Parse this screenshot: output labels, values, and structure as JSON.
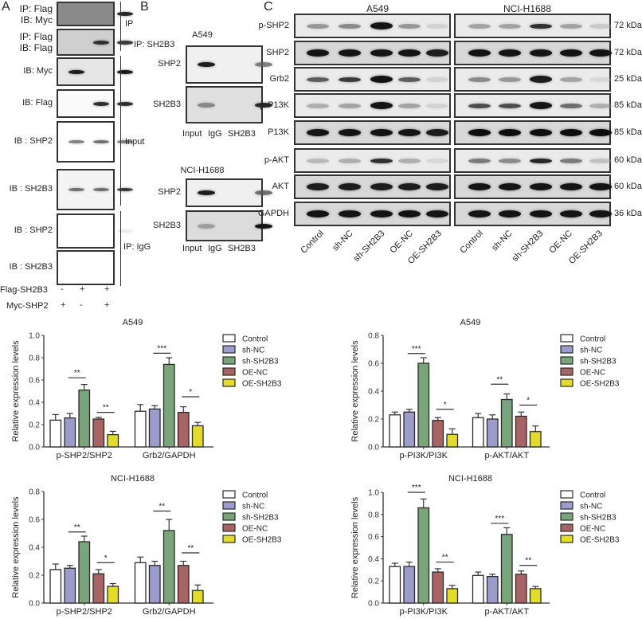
{
  "panels": {
    "a": {
      "letter": "A",
      "rows": [
        {
          "label_lines": [
            "IP: Flag",
            "IB: Myc"
          ],
          "lanes": [
            0,
            0,
            0.85
          ],
          "bg": "#8a8a8a"
        },
        {
          "label_lines": [
            "IP: Flag",
            "IB: Flag"
          ],
          "lanes": [
            0,
            0.8,
            0.75
          ],
          "bg": "#cfcfcf"
        },
        {
          "label_lines": [
            "IB: Myc"
          ],
          "lanes": [
            0.9,
            0,
            0.9
          ],
          "bg": "#e6e6e6"
        },
        {
          "label_lines": [
            "IB: Flag"
          ],
          "lanes": [
            0,
            0.8,
            0.8
          ],
          "bg": "#fafafa"
        },
        {
          "label_lines": [
            "IB : SHP2"
          ],
          "lanes": [
            0.55,
            0.6,
            0.55
          ],
          "bg": "#ffffff"
        },
        {
          "label_lines": [
            "IB : SH2B3"
          ],
          "lanes": [
            0.6,
            0.6,
            0.75
          ],
          "bg": "#f4f4f4"
        },
        {
          "label_lines": [
            "IB : SHP2"
          ],
          "lanes": [
            0,
            0,
            0.05
          ],
          "bg": "#ffffff"
        },
        {
          "label_lines": [
            "IB : SH2B3"
          ],
          "lanes": [
            0,
            0,
            0
          ],
          "bg": "#ffffff"
        }
      ],
      "group_labels": {
        "ip": "IP",
        "input": "Input",
        "ip_igg": "IP: IgG"
      },
      "conditions": [
        {
          "name": "Flag-SH2B3",
          "values": [
            "-",
            "+",
            "+"
          ]
        },
        {
          "name": "Myc-SHP2",
          "values": [
            "+",
            "-",
            "+"
          ]
        }
      ]
    },
    "b": {
      "letter": "B",
      "ip_label": "IP: SH2B3",
      "blocks": [
        {
          "cell_line": "A549",
          "rows": [
            {
              "label": "SHP2",
              "lanes": [
                0.9,
                0,
                0.55
              ],
              "bg": "#f0f0f0"
            },
            {
              "label": "SH2B3",
              "lanes": [
                0.5,
                0,
                0.85
              ],
              "bg": "#e0e0e0"
            }
          ]
        },
        {
          "cell_line": "NCI-H1688",
          "rows": [
            {
              "label": "SHP2",
              "lanes": [
                0.9,
                0,
                0.6
              ],
              "bg": "#f0f0f0"
            },
            {
              "label": "SH2B3",
              "lanes": [
                0.4,
                0,
                0.95
              ],
              "bg": "#dcdcdc"
            }
          ]
        }
      ],
      "lane_labels": [
        "Input",
        "IgG",
        "SH2B3"
      ]
    },
    "c": {
      "letter": "C",
      "cell_lines": [
        "A549",
        "NCI-H1688"
      ],
      "rows": [
        {
          "label": "p-SHP2",
          "kda": "72 kDa",
          "a549": [
            0.45,
            0.5,
            0.95,
            0.45,
            0.15
          ],
          "h1688": [
            0.4,
            0.4,
            0.8,
            0.4,
            0.2
          ]
        },
        {
          "label": "SHP2",
          "kda": "72 kDa",
          "a549": [
            0.95,
            0.95,
            0.95,
            0.95,
            0.9
          ],
          "h1688": [
            0.95,
            0.95,
            0.95,
            0.95,
            0.95
          ]
        },
        {
          "label": "Grb2",
          "kda": "25 kDa",
          "a549": [
            0.65,
            0.75,
            0.95,
            0.65,
            0.15
          ],
          "h1688": [
            0.5,
            0.45,
            0.9,
            0.4,
            0.1
          ]
        },
        {
          "label": "p-P13K",
          "kda": "85 kDa",
          "a549": [
            0.35,
            0.4,
            0.95,
            0.4,
            0.15
          ],
          "h1688": [
            0.7,
            0.7,
            0.95,
            0.6,
            0.35
          ]
        },
        {
          "label": "P13K",
          "kda": "85 kDa",
          "a549": [
            0.95,
            0.95,
            0.95,
            0.95,
            0.9
          ],
          "h1688": [
            0.98,
            0.98,
            0.98,
            0.98,
            0.98
          ]
        },
        {
          "label": "p-AKT",
          "kda": "60 kDa",
          "a549": [
            0.3,
            0.35,
            0.8,
            0.35,
            0.1
          ],
          "h1688": [
            0.55,
            0.5,
            0.85,
            0.55,
            0.25
          ]
        },
        {
          "label": "AKT",
          "kda": "60 kDa",
          "a549": [
            0.9,
            0.9,
            0.9,
            0.9,
            0.9
          ],
          "h1688": [
            0.95,
            0.95,
            0.95,
            0.95,
            0.95
          ]
        },
        {
          "label": "GAPDH",
          "kda": "36 kDa",
          "a549": [
            0.95,
            0.95,
            0.95,
            0.95,
            0.95
          ],
          "h1688": [
            0.95,
            0.95,
            0.95,
            0.95,
            0.95
          ]
        }
      ],
      "lane_labels": [
        "Control",
        "sh-NC",
        "sh-SH2B3",
        "OE-NC",
        "OE-SH2B3"
      ]
    }
  },
  "legend": {
    "entries": [
      {
        "name": "Control",
        "color": "#ffffff"
      },
      {
        "name": "sh-NC",
        "color": "#9c9ccc"
      },
      {
        "name": "sh-SH2B3",
        "color": "#7aa57a"
      },
      {
        "name": "OE-NC",
        "color": "#a86464"
      },
      {
        "name": "OE-SH2B3",
        "color": "#e3dc2a"
      }
    ]
  },
  "chart_data": [
    {
      "type": "bar",
      "title": "A549",
      "ylabel": "Relative expression levels",
      "ylim": [
        0,
        1.0
      ],
      "yticks": [
        "0.0",
        "0.2",
        "0.4",
        "0.6",
        "0.8",
        "1.0"
      ],
      "categories": [
        "p-SHP2/SHP2",
        "Grb2/GAPDH"
      ],
      "series": [
        {
          "name": "Control",
          "values": [
            0.24,
            0.32
          ],
          "errors": [
            0.05,
            0.06
          ]
        },
        {
          "name": "sh-NC",
          "values": [
            0.26,
            0.34
          ],
          "errors": [
            0.04,
            0.03
          ]
        },
        {
          "name": "sh-SH2B3",
          "values": [
            0.51,
            0.74
          ],
          "errors": [
            0.05,
            0.06
          ]
        },
        {
          "name": "OE-NC",
          "values": [
            0.25,
            0.31
          ],
          "errors": [
            0.015,
            0.05
          ]
        },
        {
          "name": "OE-SH2B3",
          "values": [
            0.11,
            0.19
          ],
          "errors": [
            0.03,
            0.03
          ]
        }
      ],
      "significance": [
        {
          "category": 0,
          "from": "sh-NC",
          "to": "sh-SH2B3",
          "label": "**",
          "level": 0.62
        },
        {
          "category": 0,
          "from": "OE-NC",
          "to": "OE-SH2B3",
          "label": "**",
          "level": 0.31
        },
        {
          "category": 1,
          "from": "sh-NC",
          "to": "sh-SH2B3",
          "label": "***",
          "level": 0.84
        },
        {
          "category": 1,
          "from": "OE-NC",
          "to": "OE-SH2B3",
          "label": "*",
          "level": 0.45
        }
      ],
      "legend": "right"
    },
    {
      "type": "bar",
      "title": "A549",
      "ylabel": "Relative expression levels",
      "ylim": [
        0,
        0.8
      ],
      "yticks": [
        "0.0",
        "0.2",
        "0.4",
        "0.6",
        "0.8"
      ],
      "categories": [
        "p-PI3K/PI3K",
        "p-AKT/AKT"
      ],
      "series": [
        {
          "name": "Control",
          "values": [
            0.23,
            0.21
          ],
          "errors": [
            0.02,
            0.03
          ]
        },
        {
          "name": "sh-NC",
          "values": [
            0.25,
            0.2
          ],
          "errors": [
            0.02,
            0.03
          ]
        },
        {
          "name": "sh-SH2B3",
          "values": [
            0.6,
            0.34
          ],
          "errors": [
            0.04,
            0.04
          ]
        },
        {
          "name": "OE-NC",
          "values": [
            0.19,
            0.22
          ],
          "errors": [
            0.02,
            0.03
          ]
        },
        {
          "name": "OE-SH2B3",
          "values": [
            0.09,
            0.11
          ],
          "errors": [
            0.04,
            0.04
          ]
        }
      ],
      "significance": [
        {
          "category": 0,
          "from": "sh-NC",
          "to": "sh-SH2B3",
          "label": "***",
          "level": 0.67
        },
        {
          "category": 0,
          "from": "OE-NC",
          "to": "OE-SH2B3",
          "label": "*",
          "level": 0.27
        },
        {
          "category": 1,
          "from": "sh-NC",
          "to": "sh-SH2B3",
          "label": "**",
          "level": 0.45
        },
        {
          "category": 1,
          "from": "OE-NC",
          "to": "OE-SH2B3",
          "label": "*",
          "level": 0.3
        }
      ],
      "legend": "right"
    },
    {
      "type": "bar",
      "title": "NCI-H1688",
      "ylabel": "Relative expression levels",
      "ylim": [
        0,
        0.8
      ],
      "yticks": [
        "0.0",
        "0.2",
        "0.4",
        "0.6",
        "0.8"
      ],
      "categories": [
        "p-SHP2/SHP2",
        "Grb2/GAPDH"
      ],
      "series": [
        {
          "name": "Control",
          "values": [
            0.24,
            0.29
          ],
          "errors": [
            0.04,
            0.04
          ]
        },
        {
          "name": "sh-NC",
          "values": [
            0.25,
            0.27
          ],
          "errors": [
            0.02,
            0.03
          ]
        },
        {
          "name": "sh-SH2B3",
          "values": [
            0.44,
            0.52
          ],
          "errors": [
            0.04,
            0.08
          ]
        },
        {
          "name": "OE-NC",
          "values": [
            0.21,
            0.27
          ],
          "errors": [
            0.03,
            0.03
          ]
        },
        {
          "name": "OE-SH2B3",
          "values": [
            0.12,
            0.09
          ],
          "errors": [
            0.02,
            0.04
          ]
        }
      ],
      "significance": [
        {
          "category": 0,
          "from": "sh-NC",
          "to": "sh-SH2B3",
          "label": "**",
          "level": 0.51
        },
        {
          "category": 0,
          "from": "OE-NC",
          "to": "OE-SH2B3",
          "label": "*",
          "level": 0.29
        },
        {
          "category": 1,
          "from": "sh-NC",
          "to": "sh-SH2B3",
          "label": "**",
          "level": 0.66
        },
        {
          "category": 1,
          "from": "OE-NC",
          "to": "OE-SH2B3",
          "label": "**",
          "level": 0.36
        }
      ],
      "legend": "right"
    },
    {
      "type": "bar",
      "title": "NCI-H1688",
      "ylabel": "Relative expression levels",
      "ylim": [
        0,
        1.0
      ],
      "yticks": [
        "0.0",
        "0.2",
        "0.4",
        "0.6",
        "0.8",
        "1.0"
      ],
      "categories": [
        "p-PI3K/PI3K",
        "p-AKT/AKT"
      ],
      "series": [
        {
          "name": "Control",
          "values": [
            0.33,
            0.25
          ],
          "errors": [
            0.03,
            0.03
          ]
        },
        {
          "name": "sh-NC",
          "values": [
            0.33,
            0.24
          ],
          "errors": [
            0.04,
            0.02
          ]
        },
        {
          "name": "sh-SH2B3",
          "values": [
            0.86,
            0.62
          ],
          "errors": [
            0.08,
            0.06
          ]
        },
        {
          "name": "OE-NC",
          "values": [
            0.28,
            0.26
          ],
          "errors": [
            0.03,
            0.03
          ]
        },
        {
          "name": "OE-SH2B3",
          "values": [
            0.13,
            0.13
          ],
          "errors": [
            0.03,
            0.02
          ]
        }
      ],
      "significance": [
        {
          "category": 0,
          "from": "sh-NC",
          "to": "sh-SH2B3",
          "label": "***",
          "level": 1.0
        },
        {
          "category": 0,
          "from": "OE-NC",
          "to": "OE-SH2B3",
          "label": "**",
          "level": 0.37
        },
        {
          "category": 1,
          "from": "sh-NC",
          "to": "sh-SH2B3",
          "label": "***",
          "level": 0.72
        },
        {
          "category": 1,
          "from": "OE-NC",
          "to": "OE-SH2B3",
          "label": "**",
          "level": 0.34
        }
      ],
      "legend": "right"
    }
  ]
}
